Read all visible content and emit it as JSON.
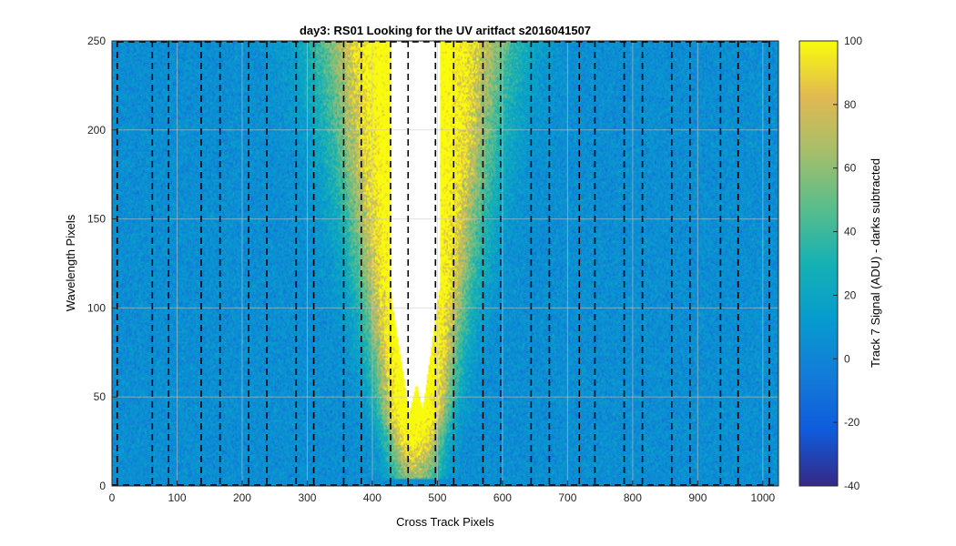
{
  "chart_data": {
    "type": "heatmap",
    "title": "day3: RS01  Looking for the UV aritfact  s2016041507",
    "xlabel": "Cross Track Pixels",
    "ylabel": "Wavelength Pixels",
    "xlim": [
      0,
      1024
    ],
    "ylim": [
      0,
      250
    ],
    "xticks": [
      0,
      100,
      200,
      300,
      400,
      500,
      600,
      700,
      800,
      900,
      1000
    ],
    "yticks": [
      0,
      50,
      100,
      150,
      200,
      250
    ],
    "colorbar": {
      "label": "Track 7 Signal (ADU) - darks subtracted",
      "lim": [
        -40,
        100
      ],
      "ticks": [
        -40,
        -20,
        0,
        20,
        40,
        60,
        80,
        100
      ],
      "colormap": "parula"
    },
    "background_level_adu": 5,
    "saturated_region": {
      "description": "white (above color limit)",
      "x_range_top": [
        428,
        503
      ],
      "min_y_left": 32,
      "min_y_right": 25,
      "notch_x": 468,
      "notch_peak_y": 58
    },
    "track_boundaries_x": [
      8,
      62,
      87,
      137,
      166,
      210,
      238,
      283,
      310,
      356,
      383,
      428,
      455,
      497,
      525,
      570,
      597,
      644,
      672,
      718,
      742,
      787,
      815,
      860,
      888,
      935,
      962,
      1010
    ],
    "grid": true
  }
}
